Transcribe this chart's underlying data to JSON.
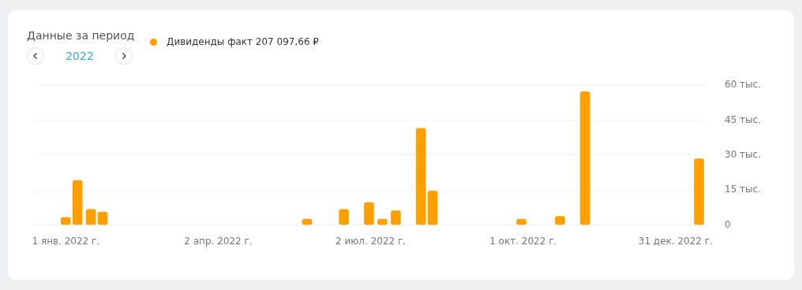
{
  "chart_data": {
    "type": "bar",
    "title": "Данные за период",
    "subtitle": "2022",
    "x": [
      "2022-01-01",
      "2022-01-08",
      "2022-01-16",
      "2022-01-23",
      "2022-05-25",
      "2022-06-16",
      "2022-07-01",
      "2022-07-09",
      "2022-07-17",
      "2022-08-01",
      "2022-08-08",
      "2022-09-30",
      "2022-10-23",
      "2022-11-07",
      "2023-01-14"
    ],
    "series": [
      {
        "name": "Дивиденды факт 207 097,66 ₽",
        "color": "#ffa000",
        "values": [
          3.3,
          19.2,
          6.8,
          5.6,
          2.5,
          6.8,
          9.6,
          2.5,
          6.2,
          41.5,
          14.6,
          2.5,
          3.7,
          57.2,
          28.4
        ]
      }
    ],
    "xlim": [
      "2021-12-13",
      "2023-01-18"
    ],
    "xticks": [
      {
        "value": "2022-01-01",
        "label": "1 янв. 2022 г."
      },
      {
        "value": "2022-04-02",
        "label": "2 апр. 2022 г."
      },
      {
        "value": "2022-07-02",
        "label": "2 июл. 2022 г."
      },
      {
        "value": "2022-10-01",
        "label": "1 окт. 2022 г."
      },
      {
        "value": "2022-12-31",
        "label": "31 дек. 2022 г."
      }
    ],
    "ylim": [
      0,
      60
    ],
    "yticks": [
      0,
      {
        "value": 15,
        "label": "15 тыс."
      },
      {
        "value": 30,
        "label": "30 тыс."
      },
      {
        "value": 45,
        "label": "45 тыс."
      },
      {
        "value": 60,
        "label": "60 тыс."
      }
    ],
    "grid": "y",
    "legend": "top"
  }
}
